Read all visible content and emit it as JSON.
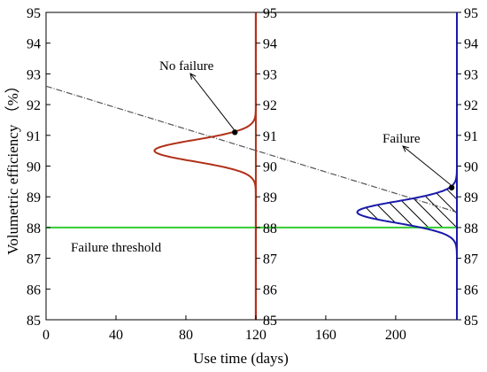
{
  "chart_data": {
    "type": "line",
    "xlabel": "Use time (days)",
    "ylabel": "Volumetric efficiency （%）",
    "xlim": [
      0,
      235
    ],
    "ylim": [
      85,
      95
    ],
    "x_ticks": [
      "0",
      "40",
      "80",
      "120",
      "160",
      "200"
    ],
    "y_ticks": [
      "85",
      "86",
      "87",
      "88",
      "89",
      "90",
      "91",
      "92",
      "93",
      "94",
      "95"
    ],
    "series": [
      {
        "style": "dash-dot",
        "color": "#555555",
        "x": [
          0,
          235
        ],
        "y": [
          92.6,
          88.5
        ]
      },
      {
        "style": "solid",
        "color": "#33cc33",
        "x": [
          0,
          235
        ],
        "y": [
          88.0,
          88.0
        ]
      }
    ],
    "distributions": [
      {
        "color": "#b03018",
        "baseline_x": 120,
        "mean_y": 90.5,
        "sigma": 0.35,
        "peak_x": 62
      },
      {
        "color": "#1a1aaa",
        "baseline_x": 235,
        "mean_y": 88.5,
        "sigma": 0.35,
        "peak_x": 178,
        "hatched_between": [
          88.0,
          89.28
        ]
      }
    ],
    "points": [
      {
        "x": 108,
        "y": 91.1
      },
      {
        "x": 232,
        "y": 89.3
      }
    ],
    "annotations": [
      {
        "text": "No failure",
        "target_x": 108,
        "target_y": 91.1
      },
      {
        "text": "Failure",
        "target_x": 232,
        "target_y": 89.3
      },
      {
        "text": "Failure threshold"
      }
    ],
    "colors": {
      "trend": "#555555",
      "threshold": "#33cc33",
      "left_distribution": "#b03018",
      "right_distribution": "#1a1aaa"
    }
  }
}
